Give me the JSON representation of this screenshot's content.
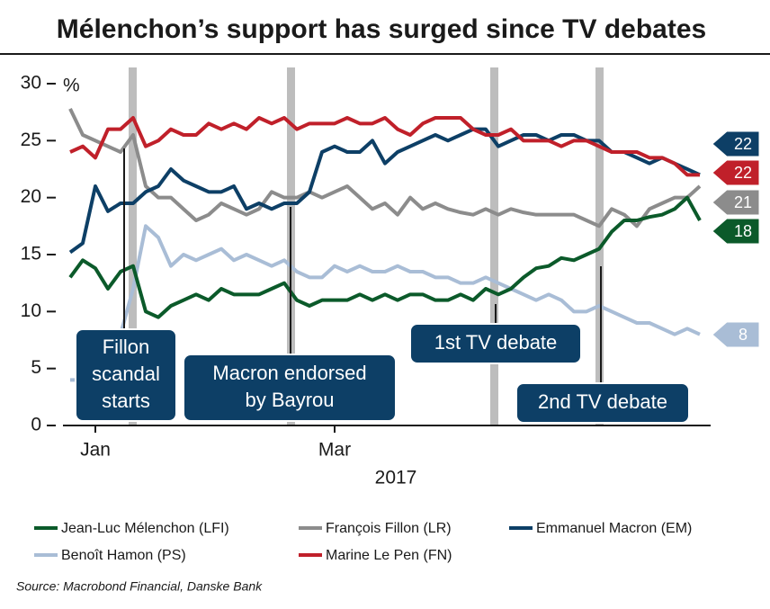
{
  "chart_data": {
    "type": "line",
    "title": "Mélenchon’s support has surged since TV debates",
    "ylabel": "%",
    "xlabel": "2017",
    "source": "Source: Macrobond Financial, Danske Bank",
    "categories": [
      null,
      null,
      "Jan",
      null,
      null,
      null,
      null,
      null,
      null,
      null,
      null,
      null,
      null,
      null,
      null,
      null,
      null,
      null,
      null,
      null,
      null,
      "Mar",
      null,
      null,
      null,
      null,
      null,
      null,
      null,
      null,
      null,
      null,
      null,
      null,
      null,
      null,
      null,
      null,
      null,
      null,
      null,
      null,
      null,
      null,
      null,
      null,
      null,
      null,
      null,
      null,
      null
    ],
    "ylim": [
      0,
      30
    ],
    "yticks": [
      0,
      5,
      10,
      15,
      20,
      25,
      30
    ],
    "annotations": [
      "Fillon scandal starts",
      "Macron endorsed by Bayrou",
      "1st TV debate",
      "2nd TV debate"
    ],
    "series": [
      {
        "name": "Jean-Luc Mélenchon (LFI)",
        "color": "#0b5a2a",
        "values": [
          13,
          14.5,
          13.8,
          12,
          13.5,
          14,
          10,
          9.5,
          10.5,
          11,
          11.5,
          11,
          12,
          11.5,
          11.5,
          11.5,
          12,
          12.5,
          11,
          10.5,
          11,
          11,
          11,
          11.5,
          11,
          11.5,
          11,
          11.5,
          11.5,
          11,
          11,
          11.5,
          11,
          12,
          11.5,
          12,
          13,
          13.8,
          14,
          14.7,
          14.5,
          15,
          15.5,
          17,
          18,
          18,
          18.3,
          18.5,
          19,
          20,
          18
        ]
      },
      {
        "name": "François Fillon (LR)",
        "color": "#8c8c8c",
        "values": [
          27.8,
          25.5,
          25,
          24.5,
          24,
          25.5,
          21,
          20,
          20,
          19,
          18,
          18.5,
          19.5,
          19,
          18.5,
          19,
          20.5,
          20,
          20,
          20.5,
          20,
          20.5,
          21,
          20,
          19,
          19.5,
          18.5,
          20,
          19,
          19.5,
          19,
          18.7,
          18.5,
          19,
          18.5,
          19,
          18.7,
          18.5,
          18.5,
          18.5,
          18.5,
          18,
          17.5,
          19,
          18.5,
          17.5,
          19,
          19.5,
          20,
          20,
          21
        ]
      },
      {
        "name": "Emmanuel Macron (EM)",
        "color": "#0d3f66",
        "values": [
          15.2,
          16,
          21,
          18.8,
          19.5,
          19.5,
          20.5,
          21,
          22.5,
          21.5,
          21,
          20.5,
          20.5,
          21,
          19,
          19.5,
          19,
          19.5,
          19.5,
          20.5,
          24,
          24.5,
          24,
          24,
          25,
          23,
          24,
          24.5,
          25,
          25.5,
          25,
          25.5,
          26,
          26,
          24.5,
          25,
          25.5,
          25.5,
          25,
          25.5,
          25.5,
          25,
          25,
          24,
          24,
          23.5,
          23,
          23.5,
          23,
          22.5,
          22
        ]
      },
      {
        "name": "Benoît Hamon (PS)",
        "color": "#a9bdd6",
        "values": [
          4,
          4,
          5,
          6,
          8,
          12,
          17.5,
          16.5,
          14,
          15,
          14.5,
          15,
          15.5,
          14.5,
          15,
          14.5,
          14,
          14.5,
          13.5,
          13,
          13,
          14,
          13.5,
          14,
          13.5,
          13.5,
          14,
          13.5,
          13.5,
          13,
          13,
          12.5,
          12.5,
          13,
          12.5,
          12,
          11.5,
          11,
          11.5,
          11,
          10,
          10,
          10.5,
          10,
          9.5,
          9,
          9,
          8.5,
          8,
          8.5,
          8
        ]
      },
      {
        "name": "Marine Le Pen (FN)",
        "color": "#c0202a",
        "values": [
          24,
          24.5,
          23.5,
          26,
          26,
          27,
          24.5,
          25,
          26,
          25.5,
          25.5,
          26.5,
          26,
          26.5,
          26,
          27,
          26.5,
          27,
          26,
          26.5,
          26.5,
          26.5,
          27,
          26.5,
          26.5,
          27,
          26,
          25.5,
          26.5,
          27,
          27,
          27,
          26,
          25.5,
          25.5,
          26,
          25,
          25,
          25,
          24.5,
          25,
          25,
          24.5,
          24,
          24,
          24,
          23.5,
          23.5,
          23,
          22,
          22
        ]
      }
    ]
  }
}
